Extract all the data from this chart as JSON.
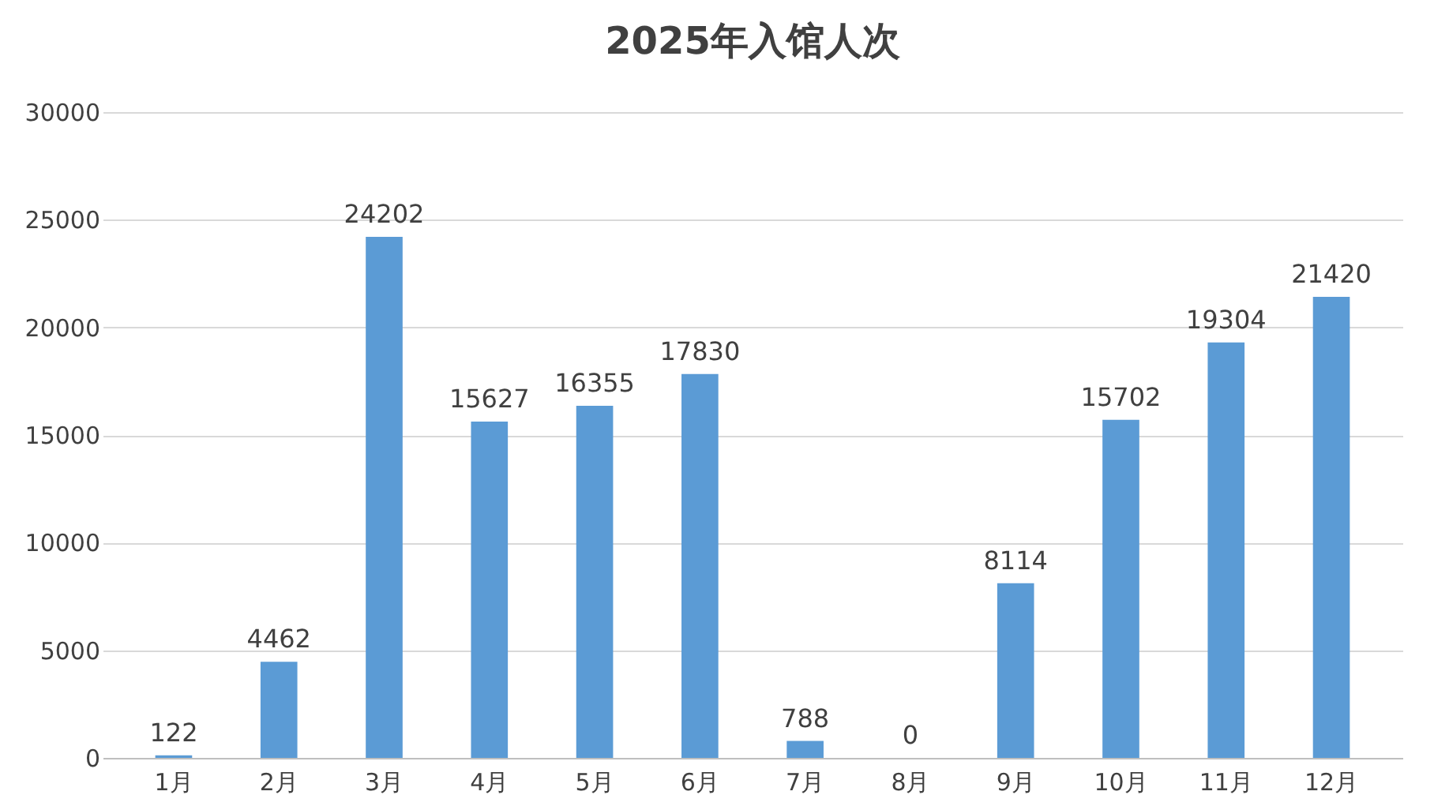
{
  "chart_data": {
    "type": "bar",
    "title": "2025年入馆人次",
    "categories": [
      "1月",
      "2月",
      "3月",
      "4月",
      "5月",
      "6月",
      "7月",
      "8月",
      "9月",
      "10月",
      "11月",
      "12月"
    ],
    "values": [
      122,
      4462,
      24202,
      15627,
      16355,
      17830,
      788,
      0,
      8114,
      15702,
      19304,
      21420
    ],
    "color": "#5b9bd5",
    "ylim": [
      0,
      30000
    ],
    "yticks": [
      0,
      5000,
      10000,
      15000,
      20000,
      25000,
      30000
    ],
    "grid": "y",
    "data_labels": true
  }
}
